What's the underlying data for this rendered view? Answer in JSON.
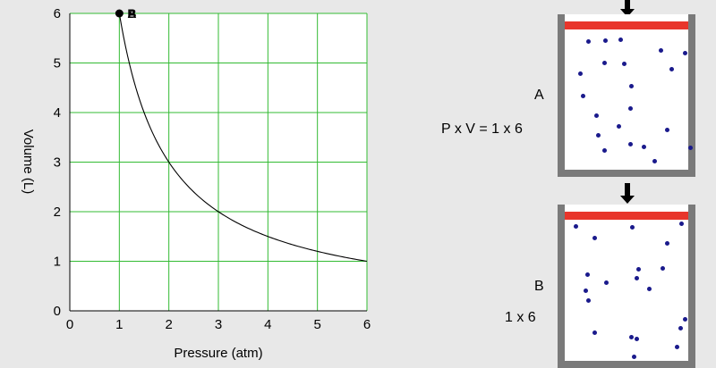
{
  "chart_data": {
    "type": "line",
    "xlabel": "Pressure (atm)",
    "ylabel": "Volume (L)",
    "xlim": [
      0,
      6
    ],
    "ylim": [
      0,
      6
    ],
    "x_ticks": [
      "0",
      "1",
      "2",
      "3",
      "4",
      "5",
      "6"
    ],
    "y_ticks": [
      "0",
      "1",
      "2",
      "3",
      "4",
      "5",
      "6"
    ],
    "grid": true,
    "grid_color": "#33bb33",
    "curve_color": "#000000",
    "series": [
      {
        "x": [
          1,
          1.2,
          1.5,
          2,
          2.5,
          3,
          3.5,
          4,
          4.5,
          5,
          5.5,
          6
        ],
        "y": [
          6,
          5,
          4,
          3,
          2.4,
          2,
          1.714,
          1.5,
          1.333,
          1.2,
          1.091,
          1
        ]
      }
    ],
    "marker": {
      "x": 1,
      "y": 6,
      "labels": [
        "A",
        "B"
      ]
    }
  },
  "diagram": {
    "cylinder_a": {
      "label": "A",
      "equation": "P x V =  1 x 6"
    },
    "cylinder_b": {
      "label": "B",
      "equation": "1 x 6"
    },
    "piston_color": "#e8352b",
    "wall_color": "#7a7a7a",
    "molecule_color": "#1a1a8c"
  }
}
